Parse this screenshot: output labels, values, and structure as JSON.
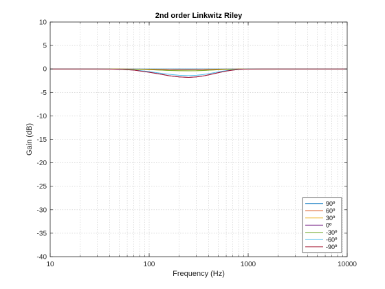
{
  "chart_data": {
    "type": "line",
    "title": "2nd order Linkwitz Riley",
    "xlabel": "Frequency (Hz)",
    "ylabel": "Gain (dB)",
    "xscale": "log",
    "xlim": [
      10,
      10000
    ],
    "ylim": [
      -40,
      10
    ],
    "xticks": [
      10,
      100,
      1000,
      10000
    ],
    "xtick_labels": [
      "10",
      "100",
      "1000",
      "10000"
    ],
    "yticks": [
      10,
      5,
      0,
      -5,
      -10,
      -15,
      -20,
      -25,
      -30,
      -35,
      -40
    ],
    "ytick_labels": [
      "10",
      "5",
      "0",
      "-5",
      "-10",
      "-15",
      "-20",
      "-25",
      "-30",
      "-35",
      "-40"
    ],
    "grid": true,
    "legend_position": "bottom-right",
    "x": [
      10,
      20,
      30,
      40,
      50,
      70,
      100,
      130,
      160,
      200,
      250,
      300,
      350,
      400,
      500,
      600,
      700,
      800,
      900,
      1000,
      1500,
      2000,
      3000,
      5000,
      10000
    ],
    "series": [
      {
        "name": "90º",
        "color": "#0072bd",
        "values": [
          0,
          0,
          0,
          0,
          0,
          0,
          0,
          0,
          0,
          0,
          0,
          0,
          0,
          0,
          0,
          0,
          0,
          0,
          0,
          0,
          0,
          0,
          0,
          0,
          0
        ]
      },
      {
        "name": "60º",
        "color": "#d95319",
        "values": [
          0,
          0,
          0,
          0,
          0,
          -0.02,
          -0.05,
          -0.08,
          -0.1,
          -0.12,
          -0.13,
          -0.12,
          -0.1,
          -0.08,
          -0.05,
          -0.03,
          -0.02,
          -0.01,
          0,
          0,
          0,
          0,
          0,
          0,
          0
        ]
      },
      {
        "name": "30º",
        "color": "#edb120",
        "values": [
          0,
          0,
          0,
          0,
          -0.02,
          -0.05,
          -0.15,
          -0.25,
          -0.33,
          -0.38,
          -0.4,
          -0.38,
          -0.33,
          -0.27,
          -0.17,
          -0.1,
          -0.06,
          -0.03,
          -0.02,
          0,
          0,
          0,
          0,
          0,
          0
        ]
      },
      {
        "name": "0º",
        "color": "#7e2f8e",
        "values": [
          0,
          0,
          0,
          -0.02,
          -0.08,
          -0.25,
          -0.7,
          -1.1,
          -1.45,
          -1.7,
          -1.8,
          -1.7,
          -1.5,
          -1.25,
          -0.8,
          -0.45,
          -0.25,
          -0.12,
          -0.05,
          -0.02,
          0,
          0,
          0,
          0,
          0
        ]
      },
      {
        "name": "-30º",
        "color": "#77ac30",
        "values": [
          0,
          0,
          0,
          0,
          -0.02,
          -0.05,
          -0.15,
          -0.25,
          -0.33,
          -0.38,
          -0.4,
          -0.38,
          -0.33,
          -0.27,
          -0.17,
          -0.1,
          -0.06,
          -0.03,
          -0.02,
          0,
          0,
          0,
          0,
          0,
          0
        ]
      },
      {
        "name": "-60º",
        "color": "#4dbeee",
        "values": [
          0,
          0,
          0,
          -0.02,
          -0.06,
          -0.2,
          -0.55,
          -0.9,
          -1.15,
          -1.35,
          -1.42,
          -1.35,
          -1.2,
          -1.0,
          -0.62,
          -0.35,
          -0.18,
          -0.08,
          -0.03,
          -0.01,
          0,
          0,
          0,
          0,
          0
        ]
      },
      {
        "name": "-90º",
        "color": "#a2142f",
        "values": [
          0,
          0,
          0,
          -0.02,
          -0.08,
          -0.25,
          -0.7,
          -1.1,
          -1.45,
          -1.7,
          -1.8,
          -1.7,
          -1.5,
          -1.25,
          -0.8,
          -0.45,
          -0.25,
          -0.12,
          -0.05,
          -0.02,
          0,
          0,
          0,
          0,
          0
        ]
      }
    ]
  }
}
